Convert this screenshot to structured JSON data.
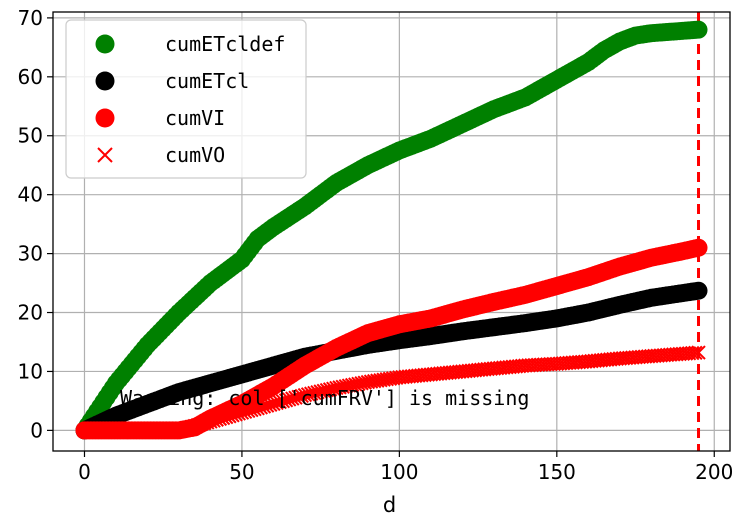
{
  "chart_data": {
    "type": "scatter",
    "xlabel": "d",
    "ylabel": "",
    "xlim": [
      -10,
      205
    ],
    "ylim": [
      -3.5,
      71
    ],
    "xticks": [
      0,
      50,
      100,
      150,
      200
    ],
    "yticks": [
      0,
      10,
      20,
      30,
      40,
      50,
      60,
      70
    ],
    "grid": true,
    "legend_position": "upper-left",
    "vline": {
      "x": 195,
      "color": "#ff0000",
      "style": "dashed"
    },
    "annotation": "Warning: col ['cumFRV'] is missing",
    "series": [
      {
        "name": "cumETcldef",
        "marker": "circle",
        "color": "#008000",
        "points": [
          [
            0,
            0
          ],
          [
            10,
            8
          ],
          [
            20,
            14.5
          ],
          [
            30,
            20
          ],
          [
            40,
            25
          ],
          [
            50,
            29
          ],
          [
            55,
            32.5
          ],
          [
            60,
            34.5
          ],
          [
            70,
            38
          ],
          [
            80,
            42
          ],
          [
            90,
            45
          ],
          [
            100,
            47.5
          ],
          [
            110,
            49.5
          ],
          [
            120,
            52
          ],
          [
            130,
            54.5
          ],
          [
            140,
            56.5
          ],
          [
            150,
            59.5
          ],
          [
            160,
            62.5
          ],
          [
            165,
            64.5
          ],
          [
            170,
            66
          ],
          [
            175,
            67
          ],
          [
            180,
            67.4
          ],
          [
            190,
            67.8
          ],
          [
            195,
            68
          ]
        ]
      },
      {
        "name": "cumETcl",
        "marker": "circle",
        "color": "#000000",
        "points": [
          [
            0,
            0
          ],
          [
            10,
            2.5
          ],
          [
            20,
            4.5
          ],
          [
            30,
            6.5
          ],
          [
            40,
            8
          ],
          [
            50,
            9.5
          ],
          [
            60,
            11
          ],
          [
            70,
            12.5
          ],
          [
            80,
            13.5
          ],
          [
            90,
            14.5
          ],
          [
            100,
            15.3
          ],
          [
            110,
            16
          ],
          [
            120,
            16.8
          ],
          [
            130,
            17.5
          ],
          [
            140,
            18.2
          ],
          [
            150,
            19
          ],
          [
            160,
            20
          ],
          [
            170,
            21.3
          ],
          [
            180,
            22.5
          ],
          [
            190,
            23.3
          ],
          [
            195,
            23.7
          ]
        ]
      },
      {
        "name": "cumVI",
        "marker": "circle",
        "color": "#ff0000",
        "points": [
          [
            0,
            0
          ],
          [
            10,
            0
          ],
          [
            20,
            0
          ],
          [
            30,
            0
          ],
          [
            35,
            0.5
          ],
          [
            40,
            2
          ],
          [
            50,
            4.5
          ],
          [
            60,
            7.5
          ],
          [
            70,
            11
          ],
          [
            80,
            14
          ],
          [
            90,
            16.5
          ],
          [
            100,
            18
          ],
          [
            110,
            19
          ],
          [
            120,
            20.5
          ],
          [
            130,
            21.8
          ],
          [
            140,
            23
          ],
          [
            150,
            24.5
          ],
          [
            160,
            26
          ],
          [
            170,
            27.8
          ],
          [
            180,
            29.3
          ],
          [
            190,
            30.4
          ],
          [
            195,
            31
          ]
        ]
      },
      {
        "name": "cumVO",
        "marker": "x",
        "color": "#ff0000",
        "points": [
          [
            0,
            0
          ],
          [
            10,
            0
          ],
          [
            20,
            0
          ],
          [
            30,
            0
          ],
          [
            40,
            1.5
          ],
          [
            50,
            3
          ],
          [
            60,
            4.5
          ],
          [
            70,
            6
          ],
          [
            80,
            7.2
          ],
          [
            90,
            8.2
          ],
          [
            100,
            9
          ],
          [
            110,
            9.5
          ],
          [
            120,
            10
          ],
          [
            130,
            10.5
          ],
          [
            140,
            11
          ],
          [
            150,
            11.3
          ],
          [
            160,
            11.7
          ],
          [
            170,
            12.2
          ],
          [
            180,
            12.6
          ],
          [
            190,
            13
          ],
          [
            195,
            13.2
          ]
        ]
      }
    ]
  }
}
